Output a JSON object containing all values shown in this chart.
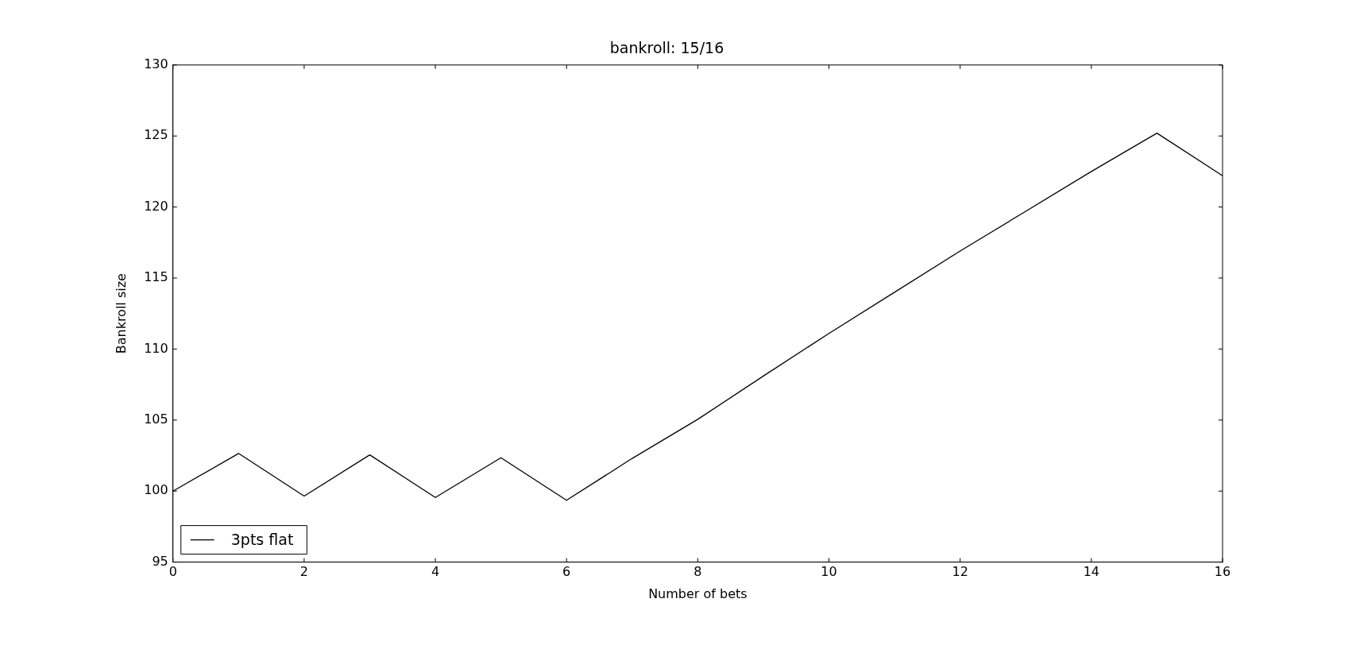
{
  "chart_data": {
    "type": "line",
    "title": "bankroll: 15/16",
    "xlabel": "Number of bets",
    "ylabel": "Bankroll size",
    "x": [
      0,
      1,
      2,
      3,
      4,
      5,
      6,
      7,
      8,
      9,
      10,
      11,
      12,
      13,
      14,
      15,
      16
    ],
    "series": [
      {
        "name": "3pts flat",
        "color": "#000000",
        "values": [
          100,
          102.65,
          99.65,
          102.55,
          99.55,
          102.35,
          99.35,
          102.3,
          105.05,
          108.1,
          111.1,
          114,
          116.9,
          119.7,
          122.5,
          125.2,
          122.2
        ]
      }
    ],
    "xlim": [
      0,
      16
    ],
    "xticks": [
      0,
      2,
      4,
      6,
      8,
      10,
      12,
      14,
      16
    ],
    "ylim": [
      95,
      130
    ],
    "yticks": [
      95,
      100,
      105,
      110,
      115,
      120,
      125,
      130
    ],
    "grid": false,
    "legend": "bottom left",
    "marker": "none",
    "line_style": "solid"
  }
}
